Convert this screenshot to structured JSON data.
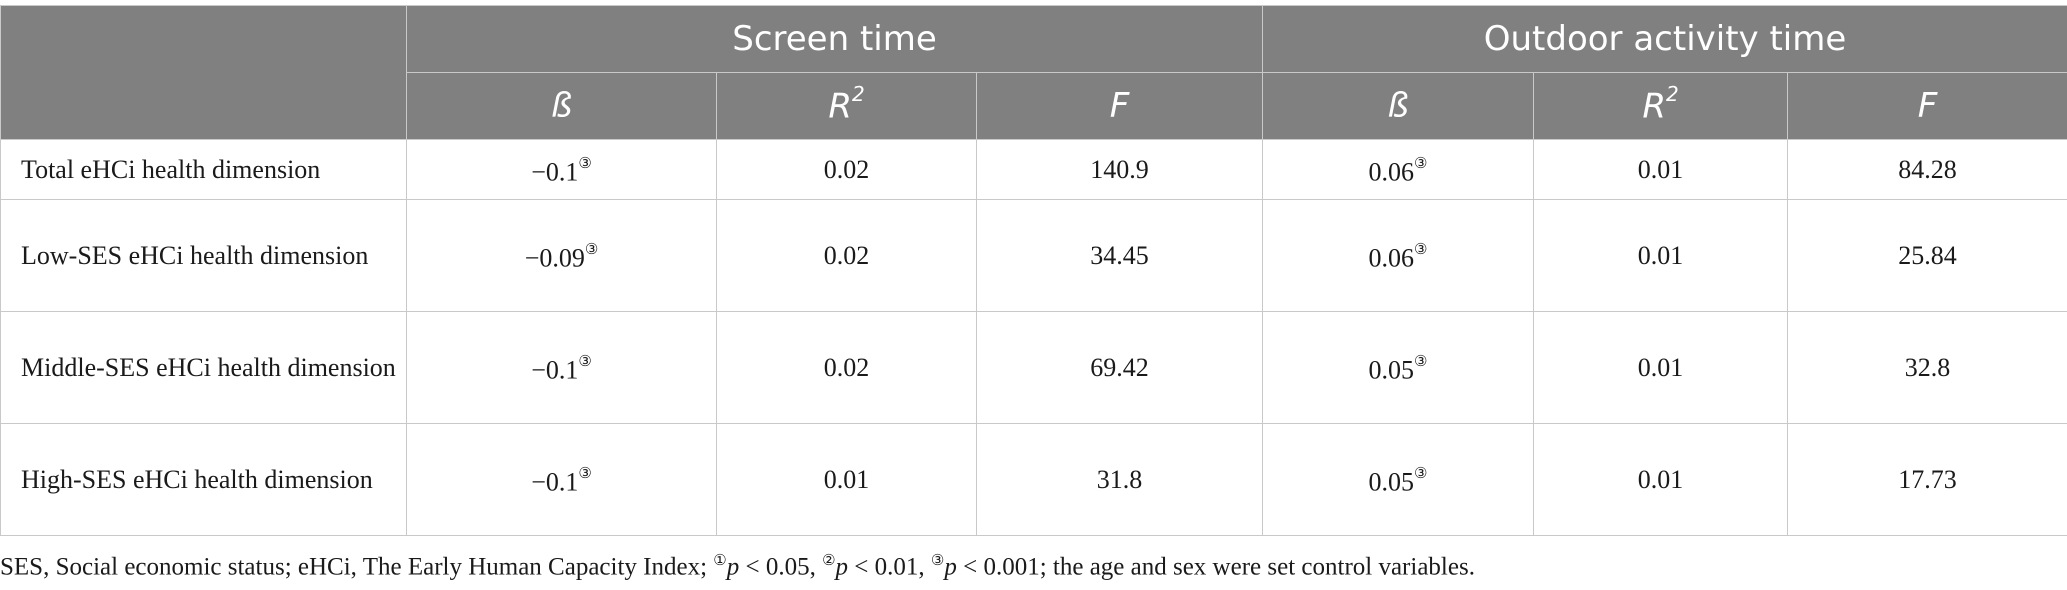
{
  "table": {
    "groups": [
      "Screen time",
      "Outdoor activity time"
    ],
    "columns": [
      {
        "label": "ß",
        "sup": ""
      },
      {
        "label": "R",
        "sup": "2"
      },
      {
        "label": "F",
        "sup": ""
      }
    ],
    "rows": [
      {
        "label": "Total eHCi health dimension",
        "screen": {
          "beta": "−0.1",
          "beta_mark": "③",
          "r2": "0.02",
          "f": "140.9"
        },
        "outdoor": {
          "beta": "0.06",
          "beta_mark": "③",
          "r2": "0.01",
          "f": "84.28"
        }
      },
      {
        "label": "Low-SES eHCi health dimension",
        "screen": {
          "beta": "−0.09",
          "beta_mark": "③",
          "r2": "0.02",
          "f": "34.45"
        },
        "outdoor": {
          "beta": "0.06",
          "beta_mark": "③",
          "r2": "0.01",
          "f": "25.84"
        }
      },
      {
        "label": "Middle-SES eHCi health dimension",
        "screen": {
          "beta": "−0.1",
          "beta_mark": "③",
          "r2": "0.02",
          "f": "69.42"
        },
        "outdoor": {
          "beta": "0.05",
          "beta_mark": "③",
          "r2": "0.01",
          "f": "32.8"
        }
      },
      {
        "label": "High-SES eHCi health dimension",
        "screen": {
          "beta": "−0.1",
          "beta_mark": "③",
          "r2": "0.01",
          "f": "31.8"
        },
        "outdoor": {
          "beta": "0.05",
          "beta_mark": "③",
          "r2": "0.01",
          "f": "17.73"
        }
      }
    ]
  },
  "footnote": {
    "prefix": "SES, Social economic status; eHCi, The Early Human Capacity Index; ",
    "m1": "①",
    "p1": "p",
    "t1": " < 0.05, ",
    "m2": "②",
    "p2": "p",
    "t2": " < 0.01, ",
    "m3": "③",
    "p3": "p",
    "t3": " < 0.001; the age and sex were set control variables."
  },
  "colors": {
    "header_bg": "#7f807f",
    "header_text": "#ffffff",
    "border": "#c9c9c9"
  }
}
